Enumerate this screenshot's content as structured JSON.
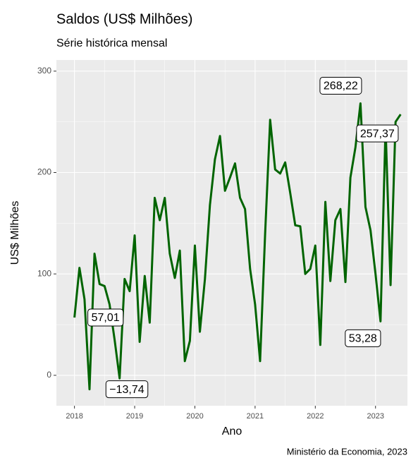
{
  "chart_data": {
    "type": "line",
    "title": "Saldos (US$ Milhões)",
    "subtitle": "Série histórica mensal",
    "x_label": "Ano",
    "y_label": "US$ Milhões",
    "caption": "Ministério da Economia, 2023",
    "x": [
      2018,
      2018.083,
      2018.167,
      2018.25,
      2018.333,
      2018.417,
      2018.5,
      2018.583,
      2018.667,
      2018.75,
      2018.833,
      2018.917,
      2019,
      2019.083,
      2019.167,
      2019.25,
      2019.333,
      2019.417,
      2019.5,
      2019.583,
      2019.667,
      2019.75,
      2019.833,
      2019.917,
      2020,
      2020.083,
      2020.167,
      2020.25,
      2020.333,
      2020.417,
      2020.5,
      2020.583,
      2020.667,
      2020.75,
      2020.833,
      2020.917,
      2021,
      2021.083,
      2021.167,
      2021.25,
      2021.333,
      2021.417,
      2021.5,
      2021.583,
      2021.667,
      2021.75,
      2021.833,
      2021.917,
      2022,
      2022.083,
      2022.167,
      2022.25,
      2022.333,
      2022.417,
      2022.5,
      2022.583,
      2022.667,
      2022.75,
      2022.833,
      2022.917,
      2023,
      2023.083,
      2023.167,
      2023.25,
      2023.333,
      2023.417
    ],
    "series": [
      {
        "name": "Saldos",
        "color": "#006400",
        "values": [
          57.01,
          106,
          75,
          -13.74,
          120,
          90,
          88,
          70,
          35,
          -3,
          95,
          83,
          138,
          33,
          98,
          52,
          175,
          153,
          175,
          120,
          96,
          123,
          14,
          34,
          128,
          43,
          95,
          168,
          213,
          236,
          182,
          195,
          209,
          175,
          164,
          105,
          70,
          14,
          140,
          252,
          203,
          199,
          210,
          180,
          148,
          147,
          100,
          105,
          128,
          30,
          171,
          93,
          153,
          164,
          92,
          195,
          225,
          268.22,
          166,
          143,
          100,
          53.28,
          245,
          89,
          250,
          257.37
        ],
        "value_labels": [
          "57,01",
          null,
          null,
          "−13,74",
          null,
          null,
          null,
          null,
          null,
          null,
          null,
          null,
          null,
          null,
          null,
          null,
          null,
          null,
          null,
          null,
          null,
          null,
          null,
          null,
          null,
          null,
          null,
          null,
          null,
          null,
          null,
          null,
          null,
          null,
          null,
          null,
          null,
          null,
          null,
          null,
          null,
          null,
          null,
          null,
          null,
          null,
          null,
          null,
          null,
          null,
          null,
          null,
          null,
          null,
          null,
          null,
          null,
          "268,22",
          null,
          null,
          null,
          "53,28",
          null,
          null,
          null,
          "257,37"
        ]
      }
    ],
    "xlim": [
      2017.7,
      2023.53
    ],
    "ylim": [
      -30,
      311
    ],
    "xticks": [
      2018,
      2019,
      2020,
      2021,
      2022,
      2023
    ],
    "yticks": [
      0,
      100,
      200,
      300
    ],
    "grid": true
  }
}
